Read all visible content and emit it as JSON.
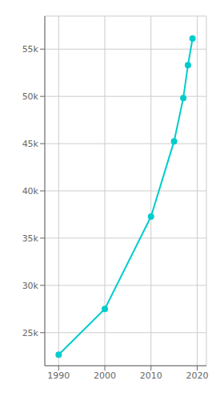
{
  "chart_data": {
    "type": "line",
    "x": [
      1990,
      2000,
      2010,
      2015,
      2017,
      2018,
      2019
    ],
    "values": [
      22660,
      27509,
      37280,
      45250,
      49831,
      53293,
      56123
    ],
    "color": "#00CCCC",
    "marker": "circle",
    "xlim": [
      1987,
      2022
    ],
    "ylim": [
      21500,
      58500
    ],
    "xticks": [
      1990,
      2000,
      2010,
      2020
    ],
    "yticks": [
      {
        "value": 25000,
        "label": "25k"
      },
      {
        "value": 30000,
        "label": "30k"
      },
      {
        "value": 35000,
        "label": "35k"
      },
      {
        "value": 40000,
        "label": "40k"
      },
      {
        "value": 45000,
        "label": "45k"
      },
      {
        "value": 50000,
        "label": "50k"
      },
      {
        "value": 55000,
        "label": "55k"
      }
    ],
    "grid": true
  }
}
